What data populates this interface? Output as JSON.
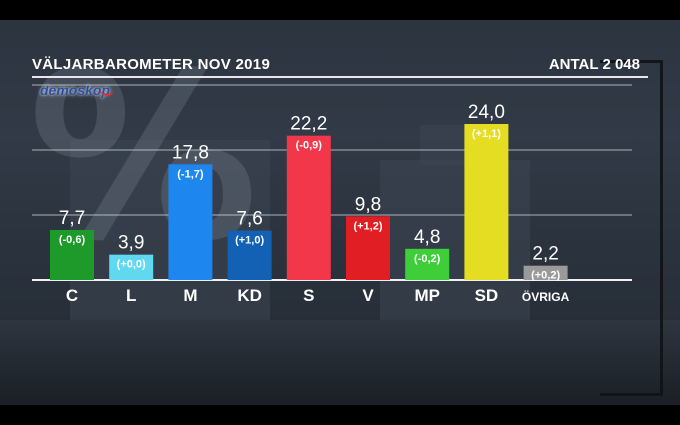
{
  "header": {
    "title": "VÄLJARBAROMETER NOV 2019",
    "count": "ANTAL 2 048",
    "logo": "demoskop",
    "watermark": "%"
  },
  "chart_data": {
    "type": "bar",
    "ylim": [
      0,
      30
    ],
    "grid": true,
    "categories": [
      "C",
      "L",
      "M",
      "KD",
      "S",
      "V",
      "MP",
      "SD",
      "ÖVRIGA"
    ],
    "values": [
      7.7,
      3.9,
      17.8,
      7.6,
      22.2,
      9.8,
      4.8,
      24.0,
      2.2
    ],
    "value_labels": [
      "7,7",
      "3,9",
      "17,8",
      "7,6",
      "22,2",
      "9,8",
      "4,8",
      "24,0",
      "2,2"
    ],
    "changes": [
      "(-0,6)",
      "(+0,0)",
      "(-1,7)",
      "(+1,0)",
      "(-0,9)",
      "(+1,2)",
      "(-0,2)",
      "(+1,1)",
      "(+0,2)"
    ],
    "colors": [
      "#1e9a2a",
      "#5fd8f0",
      "#1d86ef",
      "#1361b4",
      "#f2374b",
      "#e01e24",
      "#3ece3a",
      "#e5dd22",
      "#9a9a9a"
    ]
  }
}
